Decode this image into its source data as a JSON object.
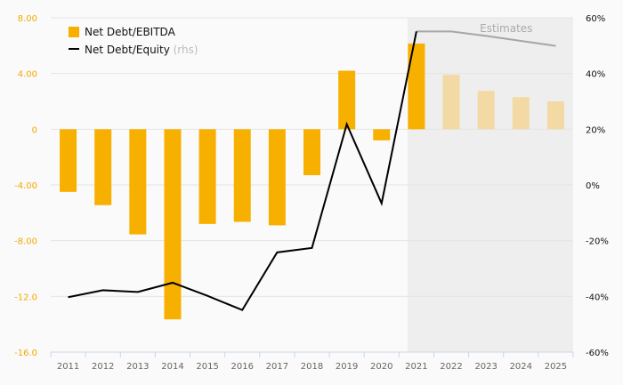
{
  "chart_data": {
    "type": "bar",
    "categories": [
      "2011",
      "2012",
      "2013",
      "2014",
      "2015",
      "2016",
      "2017",
      "2018",
      "2019",
      "2020",
      "2021",
      "2022",
      "2023",
      "2024",
      "2025"
    ],
    "series": [
      {
        "name": "Net Debt/EBITDA",
        "axis": "left",
        "type": "bar",
        "values": [
          -4.5,
          -5.45,
          -7.55,
          -13.65,
          -6.8,
          -6.65,
          -6.9,
          -3.3,
          4.2,
          -0.8,
          6.15,
          3.9,
          2.75,
          2.3,
          2.0
        ]
      },
      {
        "name": "Net Debt/Equity",
        "suffix": " (rhs)",
        "axis": "right",
        "type": "line",
        "unit": "%",
        "values": [
          -40.3,
          -37.8,
          -38.4,
          -35.1,
          -39.8,
          -44.9,
          -24.2,
          -22.6,
          21.8,
          -6.6,
          55.1,
          55.1,
          53.5,
          51.7,
          49.9
        ]
      }
    ],
    "estimates_from": "2022",
    "estimates_label": "Estimates",
    "left_axis": {
      "ylim": [
        -16,
        8
      ],
      "ticks": [
        "8.00",
        "4.00",
        "0",
        "-4.00",
        "-8.00",
        "-12.0",
        "-16.0"
      ],
      "tick_values": [
        8,
        4,
        0,
        -4,
        -8,
        -12,
        -16
      ]
    },
    "right_axis": {
      "ylim": [
        -60,
        60
      ],
      "ticks": [
        "60%",
        "40%",
        "20%",
        "0%",
        "-20%",
        "-40%",
        "-60%"
      ],
      "tick_values": [
        60,
        40,
        20,
        0,
        -20,
        -40,
        -60
      ]
    },
    "legend_position": "top-left",
    "grid": true,
    "colors": {
      "bar": "#f8b000",
      "bar_estimate": "#f3d9a4",
      "line": "#000000",
      "line_estimate": "#a6a6a6",
      "estimate_bg": "#eeeeee"
    }
  }
}
